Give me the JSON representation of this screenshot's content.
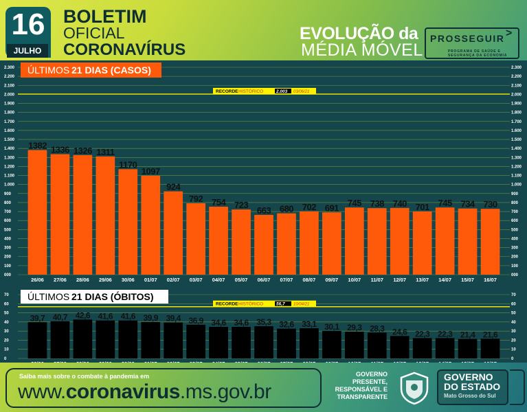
{
  "header": {
    "day": "16",
    "month": "JULHO",
    "bulletin_line1": "BOLETIM",
    "bulletin_line2": "OFICIAL",
    "bulletin_line3": "CORONAVÍRUS",
    "evolution_line1": "EVOLUÇÃO da",
    "evolution_line2": "MÉDIA MÓVEL",
    "prosseguir_title": "PROSSEGUIR",
    "prosseguir_sub1": "PROGRAMA DE SAÚDE E",
    "prosseguir_sub2": "SEGURANÇA DA ECONOMIA",
    "prosseguir_icon": "chevron-right-icon"
  },
  "chart_data": [
    {
      "type": "bar",
      "title": "ÚLTIMOS 21 DIAS (CASOS)",
      "title_prefix": "ÚLTIMOS",
      "title_bold": "21 DIAS (CASOS)",
      "categories": [
        "26/06",
        "27/06",
        "28/06",
        "29/06",
        "30/06",
        "01/07",
        "02/07",
        "03/07",
        "04/07",
        "05/07",
        "06/07",
        "07/07",
        "08/07",
        "09/07",
        "10/07",
        "11/07",
        "12/07",
        "13/07",
        "14/07",
        "15/07",
        "16/07"
      ],
      "values": [
        1382,
        1336,
        1326,
        1311,
        1170,
        1097,
        924,
        792,
        754,
        723,
        663,
        680,
        702,
        691,
        745,
        738,
        740,
        701,
        745,
        734,
        730
      ],
      "value_labels": [
        "1382",
        "1336",
        "1326",
        "1311",
        "1170",
        "1097",
        "924",
        "792",
        "754",
        "723",
        "663",
        "680",
        "702",
        "691",
        "745",
        "738",
        "740",
        "701",
        "745",
        "734",
        "730"
      ],
      "ylim": [
        0,
        2300
      ],
      "yticks": [
        0,
        100,
        200,
        300,
        400,
        500,
        600,
        700,
        800,
        900,
        1000,
        1100,
        1200,
        1300,
        1400,
        1500,
        1600,
        1700,
        1800,
        1900,
        2000,
        2100,
        2200,
        2300
      ],
      "ytick_labels": [
        "000",
        "100",
        "200",
        "300",
        "400",
        "500",
        "600",
        "700",
        "800",
        "900",
        "1.000",
        "1.100",
        "1.200",
        "1.300",
        "1.400",
        "1.500",
        "1.600",
        "1.700",
        "1.800",
        "1.900",
        "2.000",
        "2.100",
        "2.200",
        "2.300"
      ],
      "record": {
        "label_a": "RECORDE",
        "label_b": "HISTÓRICO",
        "value": 2003,
        "value_label": "2.003",
        "date": "03/06/21"
      },
      "grid": true,
      "bar_color": "#ff5a0a",
      "title_color": "#ff5a0a"
    },
    {
      "type": "bar",
      "title": "ÚLTIMOS 21 DIAS (ÓBITOS)",
      "title_prefix": "ÚLTIMOS",
      "title_bold": "21 DIAS (ÓBITOS)",
      "categories": [
        "26/06",
        "27/06",
        "28/06",
        "29/06",
        "30/06",
        "01/07",
        "02/07",
        "03/07",
        "04/07",
        "05/07",
        "06/07",
        "07/07",
        "08/07",
        "09/07",
        "10/07",
        "11/07",
        "12/07",
        "13/07",
        "14/07",
        "15/07",
        "16/07"
      ],
      "values": [
        39.7,
        40.7,
        42.6,
        41.6,
        41.6,
        39.9,
        39.4,
        36.9,
        34.6,
        34.6,
        35.3,
        32.6,
        33.1,
        30.1,
        29.3,
        28.3,
        24.6,
        22.3,
        22.3,
        21.4,
        21.6
      ],
      "value_labels": [
        "39,7",
        "40,7",
        "42,6",
        "41,6",
        "41,6",
        "39,9",
        "39,4",
        "36,9",
        "34,6",
        "34,6",
        "35,3",
        "32,6",
        "33,1",
        "30,1",
        "29,3",
        "28,3",
        "24,6",
        "22,3",
        "22,3",
        "21,4",
        "21,6"
      ],
      "ylim": [
        0,
        70
      ],
      "yticks": [
        0,
        10,
        20,
        30,
        40,
        50,
        60,
        70
      ],
      "ytick_labels": [
        "0",
        "10",
        "20",
        "30",
        "40",
        "50",
        "60",
        "70"
      ],
      "record": {
        "label_a": "RECORDE",
        "label_b": "HISTÓRICO",
        "value": 56.7,
        "value_label": "56,7",
        "date": "10/04/21"
      },
      "grid": true,
      "bar_color": "#000000",
      "title_color": "#ffffff"
    }
  ],
  "footer": {
    "small_text": "Saiba mais sobre o combate à pandemia em",
    "url_prefix": "www.",
    "url_bold": "coronavirus",
    "url_suffix": ".ms.gov.br",
    "gov_slogan_1": "GOVERNO",
    "gov_slogan_2": "PRESENTE,",
    "gov_slogan_3": "RESPONSÁVEL E",
    "gov_slogan_4": "TRANSPARENTE",
    "gov_name_1": "GOVERNO",
    "gov_name_2": "DO ESTADO",
    "gov_state": "Mato Grosso do Sul",
    "crest_icon": "state-crest-icon"
  }
}
